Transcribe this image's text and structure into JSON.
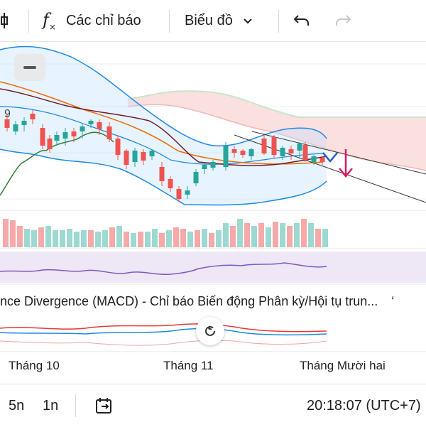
{
  "toolbar": {
    "indicators_label": "Các chỉ báo",
    "chart_type_label": "Biểu đồ",
    "icons": {
      "candle": "candlestick-icon",
      "fx": "function-icon",
      "chevron": "chevron-down-icon",
      "undo": "undo-icon",
      "redo": "redo-icon"
    }
  },
  "chart": {
    "partial_label": "9",
    "macd_title": "nce Divergence (MACD) - Chỉ báo Biến động Phân kỳ/Hội tụ trun...",
    "macd_title_suffix": "‘",
    "months": [
      "Tháng 10",
      "Tháng 11",
      "Tháng Mười hai"
    ],
    "colors": {
      "up": "#26a69a",
      "down": "#ef5350",
      "bollinger": "#1e88e5",
      "kumo": "#f8c8c8",
      "volume_up": "#9ed9d1",
      "volume_down": "#f6a9a9"
    }
  },
  "bottom": {
    "range_5y": "5n",
    "range_1y": "1n",
    "time": "20:18:07 (UTC+7)",
    "icons": {
      "goto": "go-to-date-icon"
    }
  }
}
